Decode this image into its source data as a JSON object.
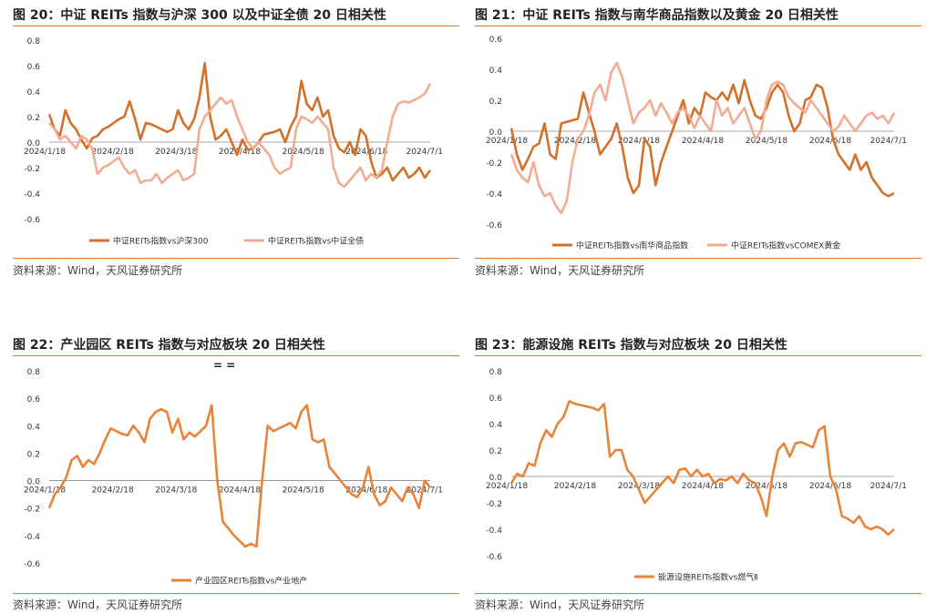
{
  "source_text": "资料来源：Wind，天风证券研究所",
  "decoration_text": "= =",
  "colors": {
    "dark": "#D1712A",
    "light": "#F2AC94",
    "rule": "#E07A2E"
  },
  "chart_data": [
    {
      "id": "c20",
      "title": "图 20：中证 REITs 指数与沪深 300 以及中证全债 20 日相关性",
      "type": "line",
      "yticks": [
        "0.8",
        "0.6",
        "0.4",
        "0.2",
        "0.0",
        "-0.2",
        "-0.4",
        "-0.6"
      ],
      "ylim": [
        -0.6,
        0.8
      ],
      "xticks": [
        "2024/1/18",
        "2024/2/18",
        "2024/3/18",
        "2024/4/18",
        "2024/5/18",
        "2024/6/18",
        "2024/7/1"
      ],
      "series": [
        {
          "name": "中证REITs指数vs沪深300",
          "color": "#D1712A",
          "values": [
            0.22,
            0.1,
            0.05,
            0.25,
            0.15,
            0.1,
            0.02,
            -0.05,
            0.03,
            0.05,
            0.1,
            0.12,
            0.15,
            0.18,
            0.2,
            0.32,
            0.18,
            0.02,
            0.15,
            0.14,
            0.12,
            0.1,
            0.08,
            0.1,
            0.25,
            0.15,
            0.1,
            0.18,
            0.35,
            0.62,
            0.2,
            0.02,
            0.05,
            0.1,
            0.0,
            -0.1,
            0.02,
            -0.06,
            -0.05,
            0.0,
            0.06,
            0.07,
            0.08,
            0.1,
            0.0,
            0.12,
            0.2,
            0.48,
            0.3,
            0.25,
            0.35,
            0.2,
            0.25,
            0.05,
            -0.05,
            -0.08,
            0.0,
            -0.1,
            0.1,
            0.05,
            -0.15,
            -0.28,
            -0.25,
            -0.2,
            -0.3,
            -0.25,
            -0.2,
            -0.28,
            -0.25,
            -0.2,
            -0.28,
            -0.22
          ]
        },
        {
          "name": "中证REITs指数vs中证全债",
          "color": "#F2AC94",
          "values": [
            0.15,
            0.1,
            0.02,
            0.05,
            0.0,
            -0.05,
            0.05,
            0.02,
            -0.05,
            -0.25,
            -0.2,
            -0.18,
            -0.15,
            -0.12,
            -0.2,
            -0.25,
            -0.22,
            -0.32,
            -0.3,
            -0.3,
            -0.25,
            -0.32,
            -0.28,
            -0.25,
            -0.22,
            -0.3,
            -0.28,
            -0.25,
            0.1,
            0.2,
            0.25,
            0.3,
            0.35,
            0.3,
            0.33,
            0.2,
            0.1,
            0.0,
            -0.05,
            0.0,
            -0.05,
            -0.1,
            -0.2,
            -0.25,
            -0.22,
            -0.2,
            0.1,
            0.2,
            0.18,
            0.15,
            0.2,
            0.15,
            0.1,
            -0.2,
            -0.32,
            -0.35,
            -0.3,
            -0.25,
            -0.2,
            -0.3,
            -0.25,
            -0.28,
            -0.22,
            0.0,
            0.2,
            0.3,
            0.32,
            0.31,
            0.33,
            0.35,
            0.38,
            0.46
          ]
        }
      ]
    },
    {
      "id": "c21",
      "title": "图 21：中证 REITs 指数与南华商品指数以及黄金 20 日相关性",
      "type": "line",
      "yticks": [
        "0.6",
        "0.4",
        "0.2",
        "0.0",
        "-0.2",
        "-0.4",
        "-0.6"
      ],
      "ylim": [
        -0.6,
        0.6
      ],
      "xticks": [
        "2024/1/18",
        "2024/2/18",
        "2024/3/18",
        "2024/4/18",
        "2024/5/18",
        "2024/6/18",
        "2024/7/1"
      ],
      "series": [
        {
          "name": "中证REITs指数vs南华商品指数",
          "color": "#D1712A",
          "values": [
            0.02,
            -0.15,
            -0.25,
            -0.18,
            -0.1,
            -0.08,
            0.05,
            -0.15,
            -0.18,
            0.05,
            0.06,
            0.07,
            0.08,
            0.25,
            0.12,
            0.0,
            -0.15,
            -0.1,
            -0.05,
            0.05,
            -0.1,
            -0.3,
            -0.4,
            -0.35,
            -0.05,
            -0.1,
            -0.35,
            -0.2,
            -0.1,
            0.0,
            0.1,
            0.2,
            0.05,
            0.15,
            0.1,
            0.25,
            0.22,
            0.2,
            0.25,
            0.2,
            0.3,
            0.18,
            0.33,
            0.2,
            0.1,
            0.08,
            0.15,
            0.25,
            0.3,
            0.25,
            0.1,
            0.0,
            0.05,
            0.2,
            0.22,
            0.3,
            0.28,
            0.15,
            -0.05,
            -0.15,
            -0.2,
            -0.25,
            -0.15,
            -0.25,
            -0.2,
            -0.3,
            -0.35,
            -0.4,
            -0.42,
            -0.4
          ]
        },
        {
          "name": "中证REITs指数vsCOMEX黄金",
          "color": "#F2AC94",
          "values": [
            -0.15,
            -0.25,
            -0.3,
            -0.33,
            -0.2,
            -0.35,
            -0.42,
            -0.4,
            -0.48,
            -0.53,
            -0.45,
            -0.2,
            -0.05,
            0.0,
            0.1,
            0.25,
            0.3,
            0.2,
            0.38,
            0.44,
            0.35,
            0.2,
            0.05,
            0.12,
            0.15,
            0.2,
            0.1,
            0.18,
            0.12,
            0.05,
            0.12,
            0.15,
            0.1,
            0.02,
            0.1,
            0.05,
            0.0,
            0.2,
            0.1,
            0.15,
            0.05,
            0.1,
            0.15,
            0.05,
            -0.05,
            0.0,
            0.2,
            0.3,
            0.32,
            0.3,
            0.22,
            0.18,
            0.15,
            0.12,
            0.2,
            0.15,
            0.1,
            0.05,
            0.0,
            0.03,
            0.1,
            0.05,
            0.0,
            0.05,
            0.1,
            0.12,
            0.08,
            0.1,
            0.05,
            0.12
          ]
        }
      ]
    },
    {
      "id": "c22",
      "title": "图 22：产业园区 REITs 指数与对应板块 20 日相关性",
      "type": "line",
      "yticks": [
        "0.8",
        "0.6",
        "0.4",
        "0.2",
        "0.0",
        "-0.2",
        "-0.4",
        "-0.6"
      ],
      "ylim": [
        -0.6,
        0.8
      ],
      "xticks": [
        "2024/1/18",
        "2024/2/18",
        "2024/3/18",
        "2024/4/18",
        "2024/5/18",
        "2024/6/18",
        "2024/7/1"
      ],
      "series": [
        {
          "name": "产业园区REITs指数vs产业地产",
          "color": "#E8833A",
          "values": [
            -0.2,
            -0.1,
            -0.05,
            0.02,
            0.15,
            0.18,
            0.1,
            0.15,
            0.12,
            0.2,
            0.3,
            0.38,
            0.36,
            0.34,
            0.33,
            0.4,
            0.35,
            0.28,
            0.45,
            0.5,
            0.52,
            0.5,
            0.35,
            0.45,
            0.3,
            0.35,
            0.32,
            0.36,
            0.4,
            0.55,
            0.0,
            -0.3,
            -0.35,
            -0.4,
            -0.44,
            -0.48,
            -0.46,
            -0.48,
            0.0,
            0.4,
            0.36,
            0.38,
            0.4,
            0.42,
            0.38,
            0.5,
            0.55,
            0.3,
            0.28,
            0.3,
            0.1,
            0.05,
            0.0,
            -0.05,
            -0.1,
            -0.12,
            -0.05,
            0.1,
            -0.1,
            -0.18,
            -0.15,
            -0.05,
            -0.1,
            -0.15,
            -0.05,
            -0.1,
            -0.2,
            0.0,
            -0.05
          ]
        }
      ]
    },
    {
      "id": "c23",
      "title": "图 23：能源设施 REITs 指数与对应板块 20 日相关性",
      "type": "line",
      "yticks": [
        "0.8",
        "0.6",
        "0.4",
        "0.2",
        "0.0",
        "-0.2",
        "-0.4",
        "-0.6"
      ],
      "ylim": [
        -0.6,
        0.8
      ],
      "xticks": [
        "2024/1/18",
        "2024/2/18",
        "2024/3/18",
        "2024/4/18",
        "2024/5/18",
        "2024/6/18",
        "2024/7/1"
      ],
      "series": [
        {
          "name": "能源设施REITs指数vs燃气Ⅱ",
          "color": "#E8833A",
          "values": [
            -0.05,
            0.02,
            0.0,
            0.1,
            0.08,
            0.25,
            0.35,
            0.3,
            0.4,
            0.45,
            0.57,
            0.55,
            0.54,
            0.53,
            0.52,
            0.5,
            0.55,
            0.15,
            0.2,
            0.2,
            0.05,
            0.0,
            -0.1,
            -0.2,
            -0.15,
            -0.1,
            -0.05,
            0.0,
            -0.05,
            0.05,
            0.06,
            0.0,
            0.05,
            0.0,
            0.02,
            -0.05,
            -0.02,
            -0.03,
            0.0,
            -0.05,
            0.02,
            -0.03,
            -0.05,
            -0.15,
            -0.3,
            0.0,
            0.2,
            0.25,
            0.15,
            0.25,
            0.26,
            0.24,
            0.22,
            0.35,
            0.38,
            0.0,
            -0.1,
            -0.3,
            -0.32,
            -0.35,
            -0.3,
            -0.38,
            -0.4,
            -0.38,
            -0.4,
            -0.44,
            -0.4
          ]
        }
      ]
    }
  ]
}
